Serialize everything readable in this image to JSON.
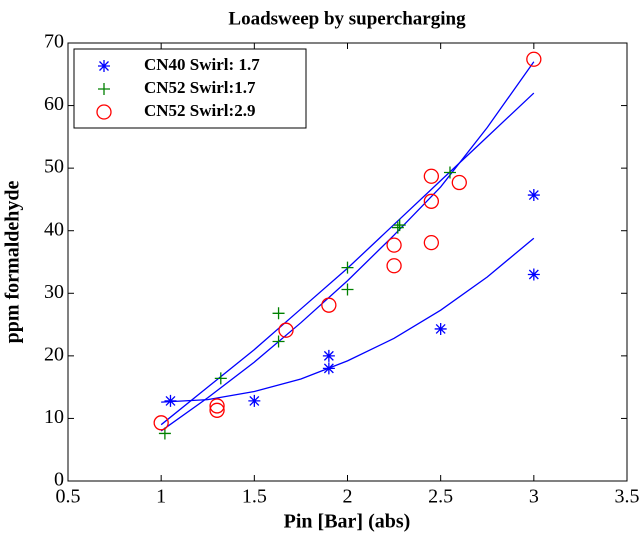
{
  "chart_data": {
    "type": "scatter",
    "title": "Loadsweep by supercharging",
    "xlabel": "Pin [Bar] (abs)",
    "ylabel": "ppm formaldehyde",
    "xlim": [
      0.5,
      3.5
    ],
    "xticks": [
      0.5,
      1,
      1.5,
      2,
      2.5,
      3,
      3.5
    ],
    "ylim": [
      0,
      70
    ],
    "yticks": [
      0,
      10,
      20,
      30,
      40,
      50,
      60,
      70
    ],
    "legend": "upper left",
    "series": [
      {
        "name": "CN40 Swirl: 1.7",
        "color": "#0000ff",
        "marker": "star",
        "x": [
          1.05,
          1.5,
          1.9,
          1.9,
          2.5,
          3,
          3
        ],
        "values": [
          12.8,
          12.8,
          20,
          18,
          24.3,
          45.7,
          33
        ]
      },
      {
        "name": "CN52 Swirl:1.7",
        "color": "#008000",
        "marker": "plus",
        "x": [
          1.02,
          1.32,
          1.63,
          1.63,
          2.0,
          2.0,
          2.27,
          2.28,
          2.55
        ],
        "values": [
          7.6,
          16.4,
          26.8,
          22.3,
          34.1,
          30.6,
          40.5,
          40.9,
          49.3
        ]
      },
      {
        "name": "CN52 Swirl:2.9",
        "color": "#ff0000",
        "marker": "circle",
        "x": [
          1.0,
          1.3,
          1.3,
          1.67,
          1.9,
          2.25,
          2.25,
          2.45,
          2.45,
          2.45,
          2.6,
          3.0
        ],
        "values": [
          9.3,
          12,
          11.3,
          24.1,
          28.1,
          37.7,
          34.4,
          48.7,
          44.7,
          38.1,
          47.7,
          67.4
        ]
      }
    ],
    "fits": [
      {
        "color": "#0000ff",
        "x": [
          1,
          1.25,
          1.5,
          1.75,
          2,
          2.25,
          2.5,
          2.75,
          3
        ],
        "values": [
          12.6,
          13,
          14.3,
          16.3,
          19.2,
          22.8,
          27.3,
          32.6,
          38.8
        ]
      },
      {
        "color": "#0000ff",
        "x": [
          1,
          1.25,
          1.5,
          1.75,
          2,
          2.25,
          2.5,
          2.75,
          3
        ],
        "values": [
          8,
          13.3,
          19,
          25.3,
          32,
          39.3,
          47,
          56.5,
          67
        ]
      },
      {
        "color": "#0000ff",
        "x": [
          1,
          1.25,
          1.5,
          1.75,
          2,
          2.25,
          2.5,
          2.75,
          3
        ],
        "values": [
          9,
          15,
          21,
          27.5,
          34,
          41,
          48,
          55,
          62
        ]
      }
    ]
  }
}
